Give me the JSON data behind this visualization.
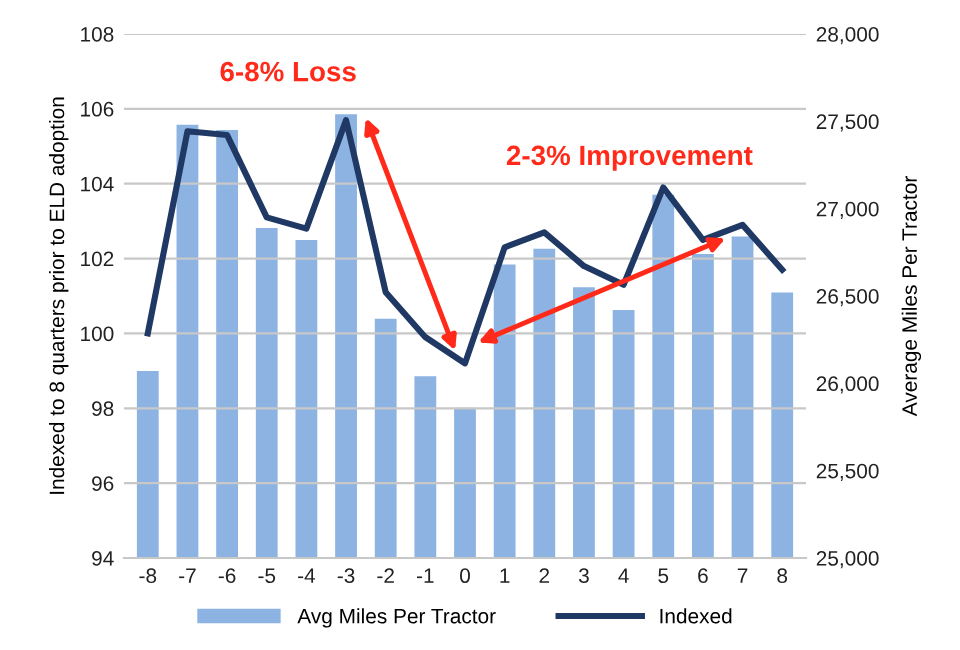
{
  "chart_data": {
    "type": "bar",
    "categories": [
      "-8",
      "-7",
      "-6",
      "-5",
      "-4",
      "-3",
      "-2",
      "-1",
      "0",
      "1",
      "2",
      "3",
      "4",
      "5",
      "6",
      "7",
      "8"
    ],
    "ylabel": "Indexed to 8 quarters prior to ELD adoption",
    "y2label": "Average Miles Per Tractor",
    "ylim": [
      94,
      108
    ],
    "yticks": [
      94,
      96,
      98,
      100,
      102,
      104,
      106,
      108
    ],
    "y2lim": [
      25000,
      28000
    ],
    "y2ticks": [
      {
        "value": 25000,
        "label": "25,000"
      },
      {
        "value": 25500,
        "label": "25,500"
      },
      {
        "value": 26000,
        "label": "26,000"
      },
      {
        "value": 26500,
        "label": "26,500"
      },
      {
        "value": 27000,
        "label": "27,000"
      },
      {
        "value": 27500,
        "label": "27,500"
      },
      {
        "value": 28000,
        "label": "28,000"
      }
    ],
    "series": [
      {
        "name": "Avg Miles Per Tractor",
        "axis": "y2",
        "color": "#8db3e2",
        "values": [
          26070,
          27480,
          27450,
          26890,
          26820,
          27540,
          26370,
          26040,
          25860,
          26680,
          26770,
          26550,
          26420,
          27080,
          26740,
          26840,
          26520
        ]
      },
      {
        "name": "Indexed",
        "type": "line",
        "color": "#1f3864",
        "values": [
          100.0,
          105.4,
          105.3,
          103.1,
          102.8,
          105.7,
          101.1,
          99.9,
          99.2,
          102.3,
          102.7,
          101.8,
          101.3,
          103.9,
          102.5,
          102.9,
          101.7
        ]
      }
    ],
    "annotations": [
      "6-8% Loss",
      "2-3% Improvement"
    ],
    "grid": "y",
    "legend": "bottom"
  }
}
